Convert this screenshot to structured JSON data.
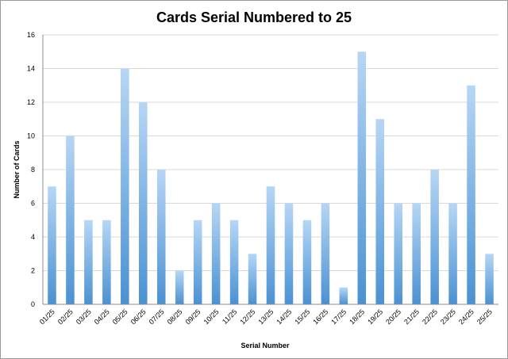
{
  "chart_data": {
    "type": "bar",
    "title": "Cards Serial Numbered to 25",
    "xlabel": "Serial Number",
    "ylabel": "Number of Cards",
    "ylim": [
      0,
      16
    ],
    "yticks": [
      0,
      2,
      4,
      6,
      8,
      10,
      12,
      14,
      16
    ],
    "grid": true,
    "legend": "none",
    "categories": [
      "01/25",
      "02/25",
      "03/25",
      "04/25",
      "05/25",
      "06/25",
      "07/25",
      "08/25",
      "09/25",
      "10/25",
      "11/25",
      "12/25",
      "13/25",
      "14/25",
      "15/25",
      "16/25",
      "17/25",
      "18/25",
      "19/25",
      "20/25",
      "21/25",
      "22/25",
      "23/25",
      "24/25",
      "25/25"
    ],
    "values": [
      7,
      10,
      5,
      5,
      14,
      12,
      8,
      2,
      5,
      6,
      5,
      3,
      7,
      6,
      5,
      6,
      1,
      15,
      11,
      6,
      6,
      8,
      6,
      13,
      3
    ],
    "colors": {
      "bar_top": "#b7d6f5",
      "bar_bottom": "#4a92d2"
    }
  }
}
